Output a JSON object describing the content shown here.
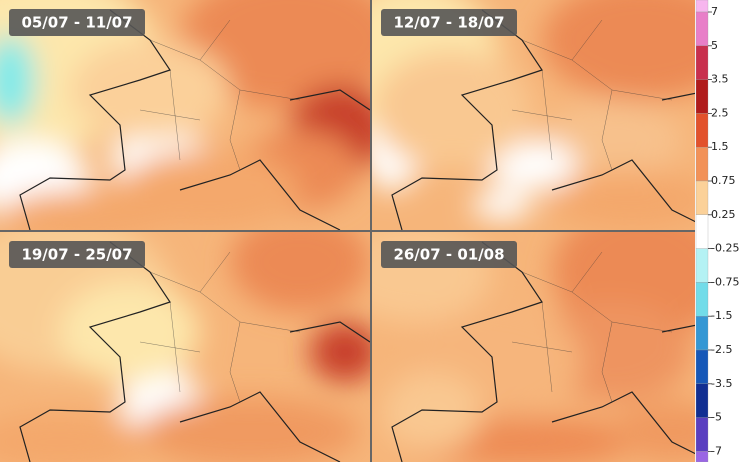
{
  "panels": [
    {
      "label": "05/07 - 11/07"
    },
    {
      "label": "12/07 - 18/07"
    },
    {
      "label": "19/07 - 25/07"
    },
    {
      "label": "26/07 - 01/08"
    }
  ],
  "legend": {
    "labels": [
      "7",
      "5",
      "3.5",
      "2.5",
      "1.5",
      "0.75",
      "0.25",
      "-0.25",
      "-0.75",
      "-1.5",
      "-2.5",
      "-3.5",
      "-5",
      "-7"
    ],
    "band_colors": [
      "#f7b6ee",
      "#e87fc8",
      "#c8304e",
      "#b01c1c",
      "#e2522c",
      "#f29258",
      "#fbd199",
      "#ffffff",
      "#b4f2f4",
      "#72dce9",
      "#3597d4",
      "#1658b8",
      "#112f92",
      "#5a3fc0",
      "#9a66e4"
    ]
  }
}
